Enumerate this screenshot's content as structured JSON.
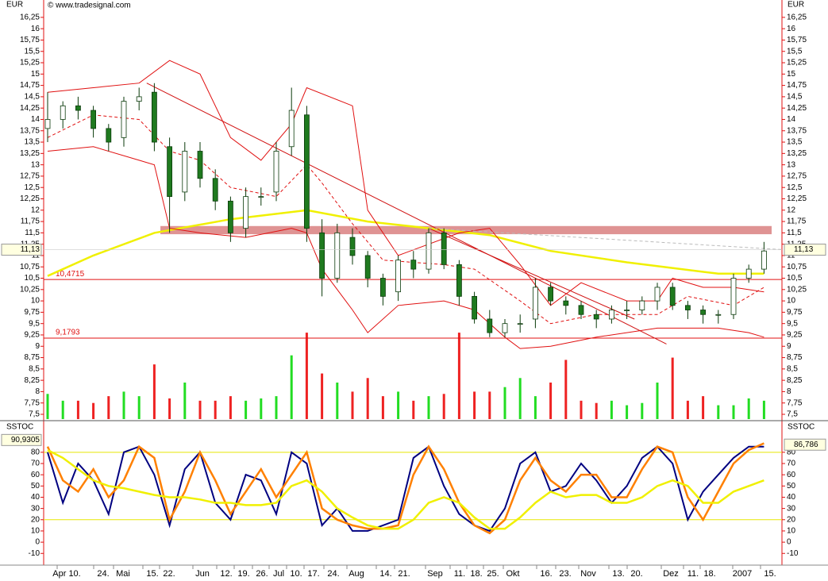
{
  "header": {
    "currency": "EUR",
    "copyright": "© www.tradesignal.com"
  },
  "x_labels": [
    "Apr 10.",
    "24.",
    "Mai",
    "15.",
    "22.",
    "Jun",
    "12.",
    "19.",
    "26.",
    "Jul",
    "10.",
    "17.",
    "24.",
    "Aug",
    "14.",
    "21.",
    "Sep",
    "11.",
    "18.",
    "25.",
    "Okt",
    "16.",
    "23.",
    "Nov",
    "13.",
    "20.",
    "Dez",
    "11.",
    "18.",
    "2007",
    "15."
  ],
  "chart_data": [
    {
      "type": "candlestick",
      "ylim": [
        7.395,
        16.58
      ],
      "yticks": [
        {
          "value": 16.25,
          "label": "16,25"
        },
        16,
        {
          "value": 15.75,
          "label": "15,75"
        },
        {
          "value": 15.5,
          "label": "15,5"
        },
        {
          "value": 15.25,
          "label": "15,25"
        },
        15,
        {
          "value": 14.75,
          "label": "14,75"
        },
        {
          "value": 14.5,
          "label": "14,5"
        },
        {
          "value": 14.25,
          "label": "14,25"
        },
        14,
        {
          "value": 13.75,
          "label": "13,75"
        },
        {
          "value": 13.5,
          "label": "13,5"
        },
        {
          "value": 13.25,
          "label": "13,25"
        },
        13,
        {
          "value": 12.75,
          "label": "12,75"
        },
        {
          "value": 12.5,
          "label": "12,5"
        },
        {
          "value": 12.25,
          "label": "12,25"
        },
        12,
        {
          "value": 11.75,
          "label": "11,75"
        },
        {
          "value": 11.5,
          "label": "11,5"
        },
        {
          "value": 11.25,
          "label": "11,25"
        },
        11,
        {
          "value": 10.75,
          "label": "10,75"
        },
        {
          "value": 10.5,
          "label": "10,5"
        },
        {
          "value": 10.25,
          "label": "10,25"
        },
        10,
        {
          "value": 9.75,
          "label": "9,75"
        },
        {
          "value": 9.5,
          "label": "9,5"
        },
        {
          "value": 9.25,
          "label": "9,25"
        },
        9,
        {
          "value": 8.75,
          "label": "8,75"
        },
        {
          "value": 8.5,
          "label": "8,5"
        },
        {
          "value": 8.25,
          "label": "8,25"
        },
        8,
        {
          "value": 7.75,
          "label": "7,75"
        },
        {
          "value": 7.5,
          "label": "7,5"
        }
      ],
      "open": [
        13.8,
        14.0,
        14.3,
        14.2,
        13.8,
        13.6,
        14.4,
        14.6,
        13.4,
        12.4,
        13.3,
        12.7,
        12.2,
        11.6,
        12.3,
        12.4,
        13.4,
        14.1,
        11.5,
        10.5,
        11.4,
        11.0,
        10.5,
        10.2,
        10.9,
        10.7,
        11.5,
        10.8,
        10.1,
        9.6,
        9.3,
        9.5,
        9.6,
        10.3,
        10.0,
        9.9,
        9.7,
        9.6,
        9.8,
        9.8,
        10.0,
        10.3,
        9.9,
        9.8,
        9.7,
        9.7,
        10.5,
        10.7
      ],
      "high": [
        14.6,
        14.4,
        14.5,
        14.3,
        13.9,
        14.5,
        14.7,
        14.8,
        13.6,
        13.5,
        13.5,
        12.9,
        12.3,
        12.5,
        12.5,
        13.5,
        14.7,
        14.3,
        11.8,
        11.7,
        11.6,
        11.1,
        10.6,
        11.0,
        11.1,
        11.6,
        11.6,
        10.9,
        10.2,
        9.8,
        9.6,
        9.7,
        10.5,
        10.4,
        10.1,
        10.0,
        9.8,
        9.9,
        10.0,
        10.1,
        10.4,
        10.4,
        10.0,
        9.9,
        9.8,
        10.6,
        10.8,
        11.3
      ],
      "low": [
        13.5,
        13.8,
        14.0,
        13.6,
        13.3,
        13.4,
        14.2,
        13.3,
        11.5,
        12.2,
        12.5,
        12.0,
        11.3,
        11.4,
        12.1,
        12.2,
        13.2,
        11.3,
        10.1,
        10.4,
        10.8,
        10.3,
        9.9,
        10.0,
        10.5,
        10.6,
        10.7,
        9.9,
        9.5,
        9.2,
        9.2,
        9.3,
        9.4,
        9.9,
        9.7,
        9.6,
        9.4,
        9.5,
        9.6,
        9.7,
        9.8,
        9.8,
        9.6,
        9.5,
        9.5,
        9.6,
        10.4,
        10.6
      ],
      "close": [
        14.0,
        14.3,
        14.2,
        13.8,
        13.5,
        14.4,
        14.5,
        13.5,
        12.3,
        13.3,
        12.7,
        12.2,
        11.5,
        12.3,
        12.3,
        13.3,
        14.2,
        11.6,
        10.5,
        11.5,
        11.0,
        10.5,
        10.1,
        10.9,
        10.7,
        11.5,
        10.8,
        10.1,
        9.6,
        9.3,
        9.5,
        9.5,
        10.3,
        10.0,
        9.9,
        9.7,
        9.6,
        9.8,
        9.8,
        10.0,
        10.3,
        9.9,
        9.8,
        9.7,
        9.7,
        10.5,
        10.7,
        11.1
      ],
      "up_color": "#ffffff",
      "down_color": "#1f7a1f",
      "volume": {
        "values": [
          7.95,
          7.8,
          7.8,
          7.75,
          7.9,
          8.0,
          7.9,
          8.6,
          7.85,
          8.2,
          7.8,
          7.8,
          7.9,
          7.8,
          7.85,
          7.9,
          8.8,
          9.3,
          8.4,
          8.2,
          8.0,
          8.3,
          7.9,
          8.0,
          7.8,
          7.9,
          7.95,
          9.3,
          8.0,
          8.0,
          8.1,
          8.3,
          7.9,
          8.2,
          8.7,
          7.8,
          7.75,
          7.8,
          7.7,
          7.75,
          8.2,
          8.75,
          7.8,
          7.9,
          7.7,
          7.7,
          7.85,
          7.8
        ],
        "up_color": "#22dd22",
        "down_color": "#ee2222"
      },
      "zone": {
        "range": [
          11.47,
          11.65
        ],
        "x": [
          7.4,
          47.5
        ],
        "color": "#d98080"
      },
      "lines": [
        {
          "x": [
            0,
            3,
            7,
            12,
            17,
            21,
            25,
            29,
            33,
            38,
            44,
            47
          ],
          "values": [
            10.55,
            11.0,
            11.5,
            11.8,
            12.0,
            11.75,
            11.6,
            11.45,
            11.1,
            10.85,
            10.6,
            10.6
          ],
          "color": "#f0f000",
          "width": 2.5,
          "dashed": false
        },
        {
          "x": [
            0,
            3,
            6,
            8,
            10,
            12,
            14,
            16,
            17,
            20,
            21,
            23,
            27,
            29,
            31,
            33,
            35,
            38,
            40,
            41,
            43,
            45,
            47
          ],
          "values": [
            14.6,
            14.7,
            14.8,
            15.3,
            15.0,
            13.6,
            13.1,
            13.9,
            14.7,
            14.3,
            12.0,
            11.0,
            11.5,
            11.6,
            10.8,
            9.9,
            10.4,
            10.0,
            10.0,
            10.5,
            10.3,
            10.3,
            10.2
          ],
          "color": "#e01010",
          "width": 1,
          "dashed": false
        },
        {
          "x": [
            0,
            3,
            6,
            7,
            8,
            10,
            13,
            16,
            17,
            18,
            20,
            21,
            23,
            26,
            28,
            30,
            31,
            33,
            36,
            40,
            44,
            46,
            47
          ],
          "values": [
            13.3,
            13.4,
            13.1,
            13.0,
            11.6,
            11.5,
            11.4,
            11.6,
            11.5,
            10.7,
            9.8,
            9.3,
            9.9,
            10.0,
            9.8,
            9.2,
            8.95,
            9.0,
            9.2,
            9.4,
            9.4,
            9.3,
            9.2
          ],
          "color": "#e01010",
          "width": 1,
          "dashed": false
        },
        {
          "x": [
            0,
            3,
            6,
            8,
            10,
            12,
            15,
            17,
            18,
            20,
            22,
            26,
            28,
            31,
            33,
            36,
            40,
            42,
            45,
            47
          ],
          "values": [
            13.6,
            14.1,
            14.0,
            13.3,
            13.1,
            12.5,
            12.3,
            13.0,
            12.6,
            11.7,
            10.9,
            10.8,
            10.7,
            10.0,
            9.5,
            9.7,
            9.7,
            10.1,
            9.9,
            10.3
          ],
          "color": "#e01010",
          "width": 1,
          "dashed": true
        },
        {
          "x": [
            6.5,
            40.6
          ],
          "values": [
            14.8,
            9.05
          ],
          "color": "#d01010",
          "width": 1,
          "dashed": false
        },
        {
          "x": [
            25,
            38.5
          ],
          "values": [
            11.6,
            9.6
          ],
          "color": "#d01010",
          "width": 1,
          "dashed": false
        },
        {
          "x": [
            25,
            48.2
          ],
          "values": [
            11.6,
            11.13
          ],
          "color": "#bbbbbb",
          "width": 1,
          "dashed": true
        }
      ],
      "levels": [
        {
          "value": 10.4715,
          "label": "10,4715"
        },
        {
          "value": 9.1793,
          "label": "9,1793"
        }
      ],
      "level_color": "#e01010",
      "last": {
        "value": 11.13,
        "label": "11,13"
      }
    },
    {
      "type": "line",
      "label": "SSTOC",
      "ylim": [
        -19,
        106
      ],
      "yticks": [
        80,
        70,
        60,
        50,
        40,
        30,
        20,
        10,
        0,
        -10
      ],
      "series": [
        {
          "color": "#000080",
          "width": 2,
          "values": [
            80,
            35,
            70,
            55,
            25,
            80,
            85,
            60,
            15,
            65,
            80,
            35,
            20,
            60,
            55,
            25,
            80,
            70,
            15,
            30,
            10,
            10,
            15,
            20,
            75,
            85,
            50,
            25,
            15,
            10,
            30,
            70,
            80,
            45,
            50,
            70,
            55,
            35,
            50,
            75,
            85,
            70,
            20,
            45,
            60,
            75,
            85,
            85
          ]
        },
        {
          "color": "#ff8000",
          "width": 2.5,
          "values": [
            85,
            55,
            45,
            65,
            40,
            55,
            85,
            75,
            20,
            45,
            80,
            55,
            25,
            45,
            65,
            40,
            60,
            80,
            30,
            20,
            15,
            12,
            12,
            15,
            60,
            85,
            65,
            35,
            15,
            8,
            20,
            55,
            75,
            55,
            45,
            60,
            60,
            40,
            40,
            65,
            85,
            80,
            40,
            20,
            45,
            70,
            82,
            88
          ]
        },
        {
          "color": "#f0f000",
          "width": 2.5,
          "values": [
            82,
            75,
            65,
            55,
            50,
            48,
            45,
            42,
            40,
            40,
            38,
            35,
            35,
            33,
            33,
            35,
            50,
            55,
            45,
            30,
            22,
            15,
            12,
            12,
            20,
            35,
            40,
            35,
            22,
            12,
            12,
            22,
            35,
            45,
            40,
            42,
            42,
            35,
            35,
            40,
            50,
            55,
            50,
            35,
            35,
            45,
            50,
            55
          ]
        }
      ],
      "levels": [
        80,
        20
      ],
      "level_color": "#e8e800",
      "last_left": {
        "value": 90.9305,
        "label": "90,9305"
      },
      "last_right": {
        "value": 86.786,
        "label": "86,786"
      }
    }
  ]
}
